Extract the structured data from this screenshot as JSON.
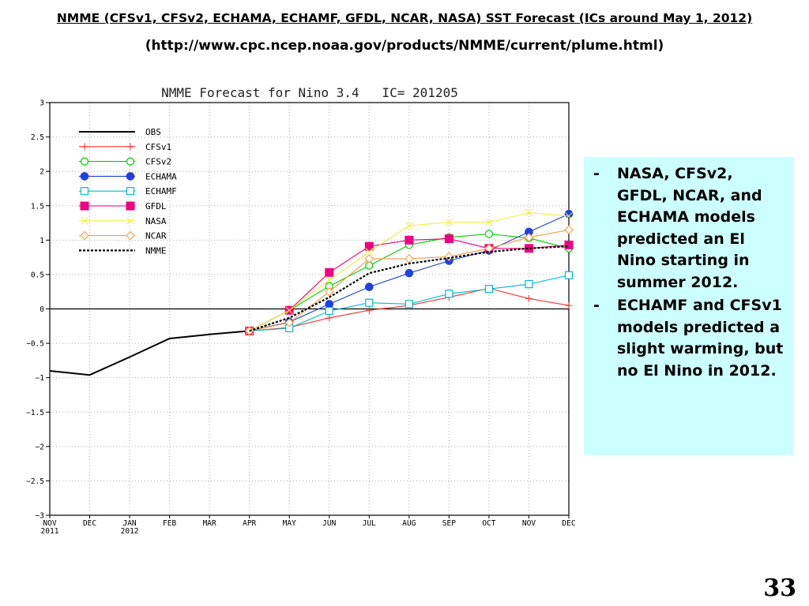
{
  "slide": {
    "title": "NMME (CFSv1, CFSv2, ECHAMA, ECHAMF, GFDL, NCAR, NASA) SST Forecast (ICs around May 1, 2012)",
    "url": "(http://www.cpc.ncep.noaa.gov/products/NMME/current/plume.html)",
    "bullets": [
      "NASA, CFSv2, GFDL, NCAR, and ECHAMA models predicted an El Nino starting in summer 2012.",
      "ECHAMF and CFSv1 models predicted a slight warming, but no El Nino in 2012."
    ],
    "bullet_marker": "-",
    "page_number": "33"
  },
  "chart_data": {
    "type": "line",
    "title": "NMME Forecast for Nino 3.4   IC= 201205",
    "xlabel": "",
    "ylabel": "",
    "categories": [
      "NOV\n2011",
      "DEC",
      "JAN\n2012",
      "FEB",
      "MAR",
      "APR",
      "MAY",
      "JUN",
      "JUL",
      "AUG",
      "SEP",
      "OCT",
      "NOV",
      "DEC"
    ],
    "yticks": [
      "3",
      "2.5",
      "2",
      "1.5",
      "1",
      "0.5",
      "0",
      "−0.5",
      "−1",
      "−1.5",
      "−2",
      "−2.5",
      "−3"
    ],
    "ylim": [
      -3,
      3
    ],
    "grid": true,
    "zero_line": true,
    "legend_position": "top-left",
    "series": [
      {
        "name": "OBS",
        "color": "#000000",
        "marker": "none",
        "dash": "",
        "width": 2,
        "points": [
          [
            0,
            -0.9
          ],
          [
            1,
            -0.96
          ],
          [
            2,
            -0.7
          ],
          [
            3,
            -0.43
          ],
          [
            4,
            -0.37
          ],
          [
            5,
            -0.32
          ]
        ]
      },
      {
        "name": "CFSv1",
        "color": "#ff3030",
        "marker": "plus",
        "points": [
          [
            5,
            -0.32
          ],
          [
            6,
            -0.27
          ],
          [
            7,
            -0.13
          ],
          [
            8,
            -0.02
          ],
          [
            9,
            0.05
          ],
          [
            10,
            0.17
          ],
          [
            11,
            0.3
          ],
          [
            12,
            0.15
          ],
          [
            13,
            0.05
          ]
        ]
      },
      {
        "name": "CFSv2",
        "color": "#00cc00",
        "marker": "circle",
        "points": [
          [
            5,
            -0.32
          ],
          [
            6,
            -0.02
          ],
          [
            7,
            0.33
          ],
          [
            8,
            0.63
          ],
          [
            9,
            0.93
          ],
          [
            10,
            1.04
          ],
          [
            11,
            1.09
          ],
          [
            12,
            1.03
          ],
          [
            13,
            0.88
          ]
        ]
      },
      {
        "name": "ECHAMA",
        "color": "#2040e0",
        "marker": "dot",
        "points": [
          [
            5,
            -0.32
          ],
          [
            6,
            -0.19
          ],
          [
            7,
            0.07
          ],
          [
            8,
            0.32
          ],
          [
            9,
            0.52
          ],
          [
            10,
            0.7
          ],
          [
            11,
            0.85
          ],
          [
            12,
            1.12
          ],
          [
            13,
            1.38
          ]
        ]
      },
      {
        "name": "ECHAMF",
        "color": "#00bbcc",
        "marker": "square",
        "points": [
          [
            5,
            -0.32
          ],
          [
            6,
            -0.28
          ],
          [
            7,
            -0.03
          ],
          [
            8,
            0.09
          ],
          [
            9,
            0.07
          ],
          [
            10,
            0.22
          ],
          [
            11,
            0.29
          ],
          [
            12,
            0.36
          ],
          [
            13,
            0.49
          ]
        ]
      },
      {
        "name": "GFDL",
        "color": "#ee0080",
        "marker": "fsquare",
        "points": [
          [
            5,
            -0.32
          ],
          [
            6,
            -0.02
          ],
          [
            7,
            0.53
          ],
          [
            8,
            0.91
          ],
          [
            9,
            1.0
          ],
          [
            10,
            1.02
          ],
          [
            11,
            0.88
          ],
          [
            12,
            0.88
          ],
          [
            13,
            0.93
          ]
        ]
      },
      {
        "name": "NASA",
        "color": "#eeee40",
        "marker": "cross",
        "points": [
          [
            5,
            -0.32
          ],
          [
            6,
            -0.02
          ],
          [
            7,
            0.42
          ],
          [
            8,
            0.83
          ],
          [
            9,
            1.21
          ],
          [
            10,
            1.26
          ],
          [
            11,
            1.26
          ],
          [
            12,
            1.4
          ],
          [
            13,
            1.35
          ]
        ]
      },
      {
        "name": "NCAR",
        "color": "#ff9a40",
        "marker": "diamond",
        "points": [
          [
            5,
            -0.32
          ],
          [
            6,
            -0.2
          ],
          [
            7,
            0.25
          ],
          [
            8,
            0.73
          ],
          [
            9,
            0.73
          ],
          [
            10,
            0.76
          ],
          [
            11,
            0.88
          ],
          [
            12,
            1.04
          ],
          [
            13,
            1.15
          ]
        ]
      },
      {
        "name": "NMME",
        "color": "#000000",
        "marker": "none",
        "dash": "3,2",
        "width": 2.2,
        "points": [
          [
            5,
            -0.32
          ],
          [
            6,
            -0.13
          ],
          [
            7,
            0.17
          ],
          [
            8,
            0.52
          ],
          [
            9,
            0.66
          ],
          [
            10,
            0.74
          ],
          [
            11,
            0.83
          ],
          [
            12,
            0.88
          ],
          [
            13,
            0.91
          ]
        ]
      }
    ]
  }
}
